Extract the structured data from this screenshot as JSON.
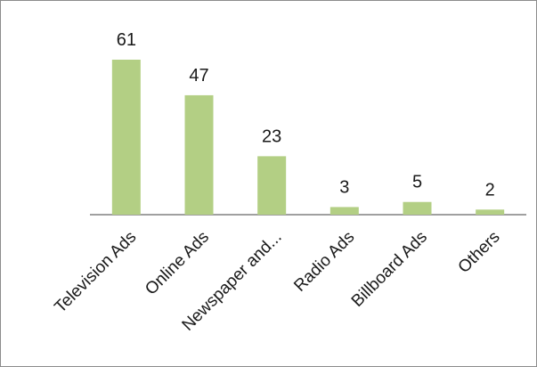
{
  "chart_data": {
    "type": "bar",
    "title": "",
    "xlabel": "",
    "ylabel": "",
    "categories": [
      "Television Ads",
      "Online Ads",
      "Newspaper and...",
      "Radio Ads",
      "Billboard Ads",
      "Others"
    ],
    "values": [
      61,
      47,
      23,
      3,
      5,
      2
    ],
    "ylim": [
      0,
      61
    ],
    "grid": false,
    "legend": "none",
    "data_labels": true,
    "bar_color": "#b3cf84",
    "tick_label_rotation": "-45deg"
  }
}
